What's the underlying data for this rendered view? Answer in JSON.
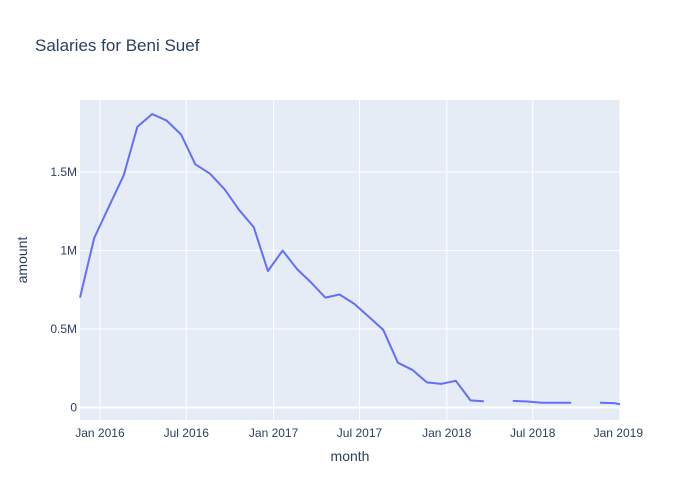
{
  "chart_data": {
    "type": "line",
    "title": "Salaries for Beni Suef",
    "xlabel": "month",
    "ylabel": "amount",
    "x_ticks": [
      "Jan 2016",
      "Jul 2016",
      "Jan 2017",
      "Jul 2017",
      "Jan 2018",
      "Jul 2018",
      "Jan 2019"
    ],
    "y_ticks": [
      "0",
      "0.5M",
      "1M",
      "1.5M"
    ],
    "xlim": [
      "2015-11-20",
      "2019-01-01"
    ],
    "ylim": [
      -80000,
      1960000
    ],
    "grid": true,
    "colors": {
      "plot_bg": "#e5ecf6",
      "line": "#636efa",
      "grid": "#ffffff",
      "text": "#2a3f5f"
    },
    "series": [
      {
        "segments": [
          [
            [
              "2015-11-20",
              700000
            ],
            [
              "2015-12-20",
              1080000
            ],
            [
              "2016-01-20",
              1280000
            ],
            [
              "2016-02-20",
              1480000
            ],
            [
              "2016-03-20",
              1790000
            ],
            [
              "2016-04-20",
              1870000
            ],
            [
              "2016-05-20",
              1830000
            ],
            [
              "2016-06-20",
              1740000
            ],
            [
              "2016-07-20",
              1550000
            ],
            [
              "2016-08-20",
              1490000
            ],
            [
              "2016-09-20",
              1390000
            ],
            [
              "2016-10-20",
              1260000
            ],
            [
              "2016-11-20",
              1150000
            ],
            [
              "2016-12-20",
              870000
            ],
            [
              "2017-01-20",
              1000000
            ],
            [
              "2017-02-20",
              880000
            ],
            [
              "2017-03-20",
              800000
            ],
            [
              "2017-04-20",
              700000
            ],
            [
              "2017-05-20",
              720000
            ],
            [
              "2017-06-20",
              660000
            ],
            [
              "2017-07-20",
              580000
            ],
            [
              "2017-08-20",
              495000
            ],
            [
              "2017-09-20",
              285000
            ],
            [
              "2017-10-20",
              240000
            ],
            [
              "2017-11-20",
              160000
            ],
            [
              "2017-12-20",
              150000
            ],
            [
              "2018-01-20",
              170000
            ],
            [
              "2018-02-20",
              45000
            ],
            [
              "2018-03-20",
              40000
            ]
          ],
          [
            [
              "2018-05-20",
              42000
            ],
            [
              "2018-06-20",
              38000
            ],
            [
              "2018-07-20",
              30000
            ],
            [
              "2018-08-20",
              30000
            ],
            [
              "2018-09-20",
              30000
            ]
          ],
          [
            [
              "2018-11-20",
              30000
            ],
            [
              "2018-12-20",
              28000
            ],
            [
              "2019-01-01",
              20000
            ]
          ]
        ]
      }
    ]
  }
}
